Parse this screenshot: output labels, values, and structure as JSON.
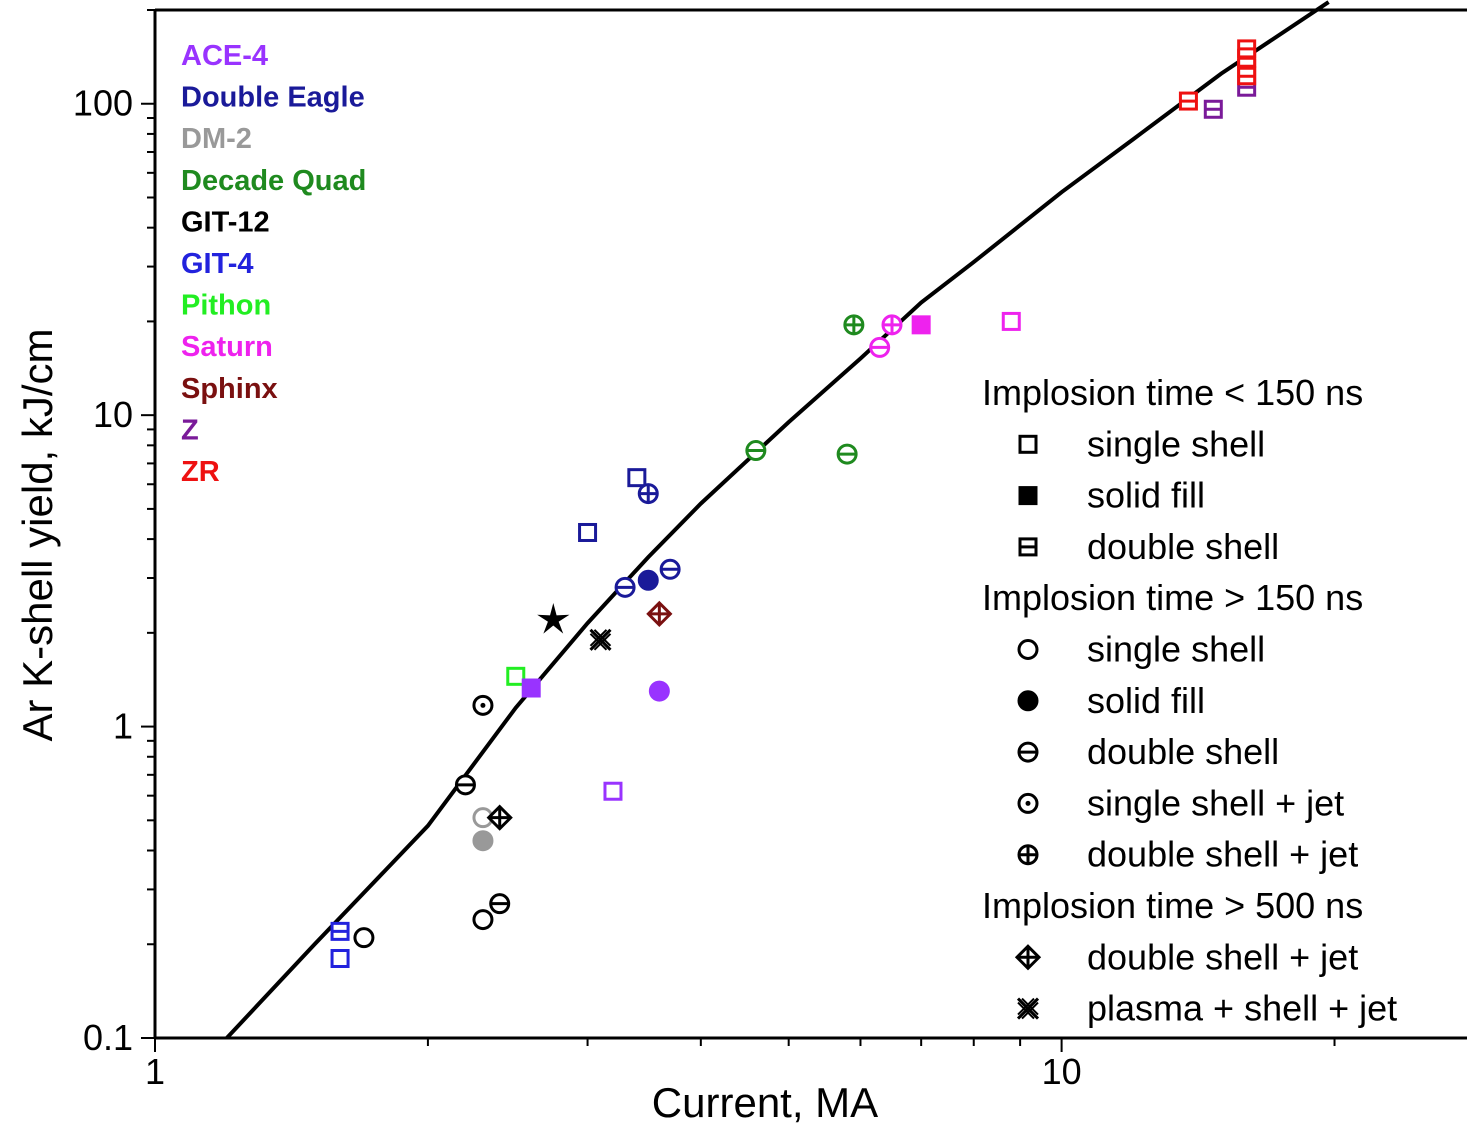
{
  "chart_data": {
    "type": "scatter",
    "x_scale": "log",
    "y_scale": "log",
    "xlim": [
      1,
      28
    ],
    "ylim": [
      0.1,
      200
    ],
    "xlabel": "Current, MA",
    "ylabel": "Ar K-shell yield, kJ/cm",
    "x_ticks": [
      {
        "value": 1,
        "label": "1"
      },
      {
        "value": 10,
        "label": "10"
      }
    ],
    "y_ticks": [
      {
        "value": 0.1,
        "label": "0.1"
      },
      {
        "value": 1,
        "label": "1"
      },
      {
        "value": 10,
        "label": "10"
      },
      {
        "value": 100,
        "label": "100"
      }
    ],
    "facilities": [
      {
        "name": "ACE-4",
        "color": "#9933ff"
      },
      {
        "name": "Double Eagle",
        "color": "#1a1a99"
      },
      {
        "name": "DM-2",
        "color": "#999999"
      },
      {
        "name": "Decade Quad",
        "color": "#1f8a1f"
      },
      {
        "name": "GIT-12",
        "color": "#000000"
      },
      {
        "name": "GIT-4",
        "color": "#2222dd"
      },
      {
        "name": "Pithon",
        "color": "#22ee22"
      },
      {
        "name": "Saturn",
        "color": "#ee22ee"
      },
      {
        "name": "Sphinx",
        "color": "#7a1010"
      },
      {
        "name": "Z",
        "color": "#7a1a99"
      },
      {
        "name": "ZR",
        "color": "#ee1111"
      }
    ],
    "legend": [
      {
        "kind": "header",
        "text": "Implosion time < 150 ns"
      },
      {
        "kind": "item",
        "marker": "square",
        "text": "single shell"
      },
      {
        "kind": "item",
        "marker": "square-filled",
        "text": "solid fill"
      },
      {
        "kind": "item",
        "marker": "square-double",
        "text": "double shell"
      },
      {
        "kind": "header",
        "text": "Implosion time > 150 ns"
      },
      {
        "kind": "item",
        "marker": "circle",
        "text": "single shell"
      },
      {
        "kind": "item",
        "marker": "circle-filled",
        "text": "solid fill"
      },
      {
        "kind": "item",
        "marker": "circle-double",
        "text": "double shell"
      },
      {
        "kind": "item",
        "marker": "circle-dot",
        "text": "single shell + jet"
      },
      {
        "kind": "item",
        "marker": "circle-plus",
        "text": "double shell + jet"
      },
      {
        "kind": "header",
        "text": "Implosion time > 500 ns"
      },
      {
        "kind": "item",
        "marker": "diamond-plus",
        "text": "double shell + jet"
      },
      {
        "kind": "item",
        "marker": "cross-x",
        "text": "plasma + shell + jet"
      }
    ],
    "fit_curve": [
      [
        1.2,
        0.1
      ],
      [
        1.5,
        0.2
      ],
      [
        2.0,
        0.48
      ],
      [
        2.5,
        1.15
      ],
      [
        3.0,
        2.15
      ],
      [
        3.5,
        3.5
      ],
      [
        4.0,
        5.2
      ],
      [
        5.0,
        9.5
      ],
      [
        6.0,
        15.2
      ],
      [
        7.0,
        23.0
      ],
      [
        8.0,
        31.0
      ],
      [
        10.0,
        52.0
      ],
      [
        12.0,
        77.0
      ],
      [
        15.0,
        125.0
      ],
      [
        19.7,
        212.0
      ]
    ],
    "points": [
      {
        "facility": "GIT-4",
        "marker": "square",
        "x": 1.6,
        "y": 0.18
      },
      {
        "facility": "GIT-4",
        "marker": "square-double",
        "x": 1.6,
        "y": 0.22
      },
      {
        "facility": "GIT-12",
        "marker": "circle",
        "x": 1.7,
        "y": 0.21
      },
      {
        "facility": "GIT-12",
        "marker": "circle",
        "x": 2.3,
        "y": 0.24
      },
      {
        "facility": "GIT-12",
        "marker": "circle-double",
        "x": 2.4,
        "y": 0.27
      },
      {
        "facility": "GIT-12",
        "marker": "circle-double",
        "x": 2.2,
        "y": 0.65
      },
      {
        "facility": "DM-2",
        "marker": "circle",
        "x": 2.3,
        "y": 0.51
      },
      {
        "facility": "DM-2",
        "marker": "circle-filled",
        "x": 2.3,
        "y": 0.43
      },
      {
        "facility": "GIT-12",
        "marker": "diamond-plus",
        "x": 2.4,
        "y": 0.51
      },
      {
        "facility": "GIT-12",
        "marker": "circle-dot",
        "x": 2.3,
        "y": 1.17
      },
      {
        "facility": "Pithon",
        "marker": "square",
        "x": 2.5,
        "y": 1.45
      },
      {
        "facility": "ACE-4",
        "marker": "square-filled",
        "x": 2.6,
        "y": 1.33
      },
      {
        "facility": "GIT-12",
        "marker": "star",
        "x": 2.75,
        "y": 2.2
      },
      {
        "facility": "GIT-12",
        "marker": "cross-x",
        "x": 3.1,
        "y": 1.9
      },
      {
        "facility": "ACE-4",
        "marker": "square",
        "x": 3.2,
        "y": 0.62
      },
      {
        "facility": "ACE-4",
        "marker": "circle-filled",
        "x": 3.6,
        "y": 1.3
      },
      {
        "facility": "Sphinx",
        "marker": "diamond-plus",
        "x": 3.6,
        "y": 2.3
      },
      {
        "facility": "Double Eagle",
        "marker": "square",
        "x": 3.0,
        "y": 4.2
      },
      {
        "facility": "Double Eagle",
        "marker": "square",
        "x": 3.4,
        "y": 6.3
      },
      {
        "facility": "Double Eagle",
        "marker": "circle-plus",
        "x": 3.5,
        "y": 5.6
      },
      {
        "facility": "Double Eagle",
        "marker": "circle-double",
        "x": 3.3,
        "y": 2.8
      },
      {
        "facility": "Double Eagle",
        "marker": "circle-filled",
        "x": 3.5,
        "y": 2.95
      },
      {
        "facility": "Double Eagle",
        "marker": "circle-double",
        "x": 3.7,
        "y": 3.2
      },
      {
        "facility": "Decade Quad",
        "marker": "circle-double",
        "x": 4.6,
        "y": 7.7
      },
      {
        "facility": "Decade Quad",
        "marker": "circle-double",
        "x": 5.8,
        "y": 7.5
      },
      {
        "facility": "Decade Quad",
        "marker": "circle-plus",
        "x": 5.9,
        "y": 19.5
      },
      {
        "facility": "Saturn",
        "marker": "circle-double",
        "x": 6.3,
        "y": 16.5
      },
      {
        "facility": "Saturn",
        "marker": "circle-plus",
        "x": 6.5,
        "y": 19.5
      },
      {
        "facility": "Saturn",
        "marker": "square-filled",
        "x": 7.0,
        "y": 19.5
      },
      {
        "facility": "Saturn",
        "marker": "square",
        "x": 8.8,
        "y": 20.0
      },
      {
        "facility": "ZR",
        "marker": "square-double",
        "x": 13.8,
        "y": 102
      },
      {
        "facility": "Z",
        "marker": "square-double",
        "x": 14.7,
        "y": 96
      },
      {
        "facility": "Z",
        "marker": "square-double",
        "x": 16.0,
        "y": 113
      },
      {
        "facility": "ZR",
        "marker": "square-double",
        "x": 16.0,
        "y": 123
      },
      {
        "facility": "ZR",
        "marker": "square-double",
        "x": 16.0,
        "y": 130
      },
      {
        "facility": "ZR",
        "marker": "square-double",
        "x": 16.0,
        "y": 140
      },
      {
        "facility": "ZR",
        "marker": "square-double",
        "x": 16.0,
        "y": 150
      }
    ]
  }
}
